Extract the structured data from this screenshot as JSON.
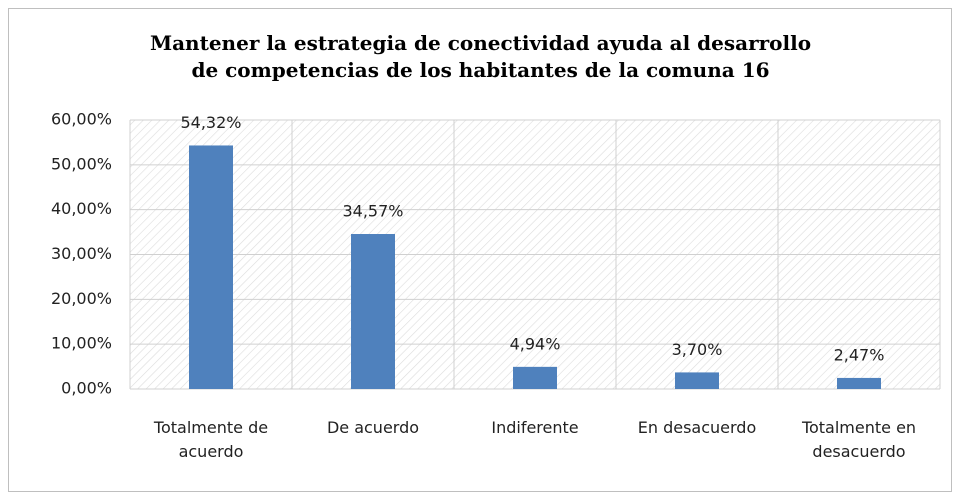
{
  "chart_data": {
    "type": "bar",
    "title": "Mantener la estrategia de conectividad ayuda al desarrollo\nde competencias de los habitantes de la comuna 16",
    "categories": [
      "Totalmente de\nacuerdo",
      "De acuerdo",
      "Indiferente",
      "En desacuerdo",
      "Totalmente en\ndesacuerdo"
    ],
    "values": [
      54.32,
      34.57,
      4.94,
      3.7,
      2.47
    ],
    "value_labels": [
      "54,32%",
      "34,57%",
      "4,94%",
      "3,70%",
      "2,47%"
    ],
    "color": "#4f81bd",
    "ylim": [
      0,
      60
    ],
    "yticks": [
      {
        "value": 0,
        "label": "0,00%"
      },
      {
        "value": 10,
        "label": "10,00%"
      },
      {
        "value": 20,
        "label": "20,00%"
      },
      {
        "value": 30,
        "label": "30,00%"
      },
      {
        "value": 40,
        "label": "40,00%"
      },
      {
        "value": 50,
        "label": "50,00%"
      },
      {
        "value": 60,
        "label": "60,00%"
      }
    ],
    "grid": true
  }
}
